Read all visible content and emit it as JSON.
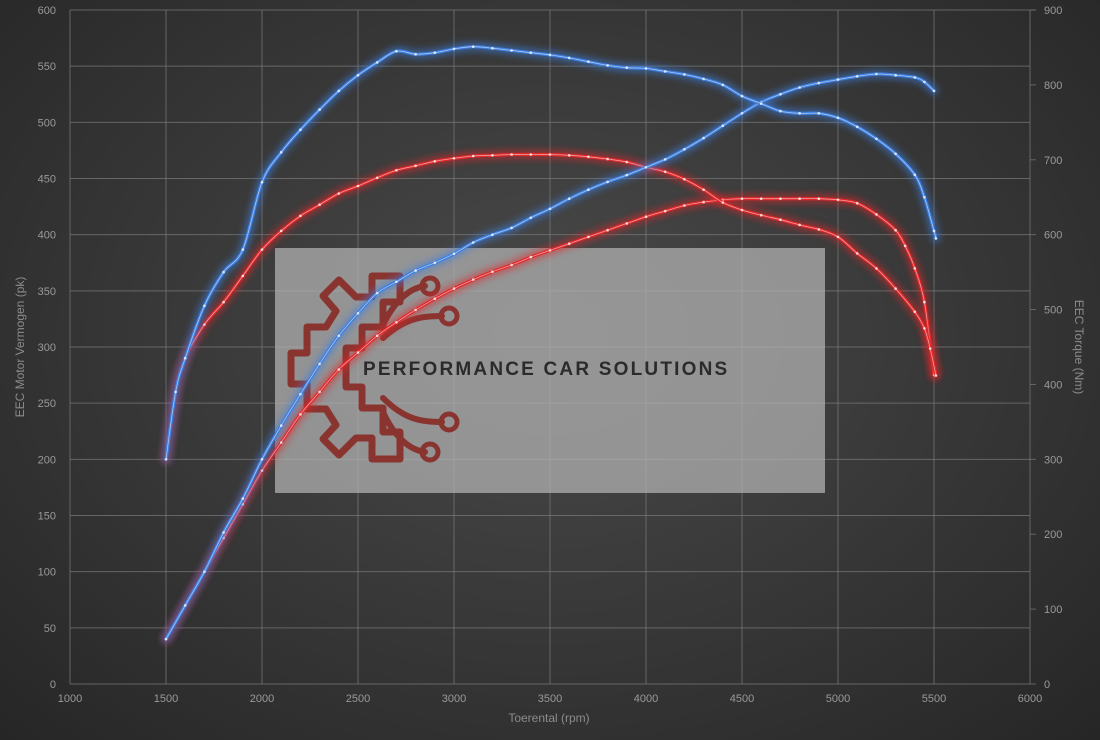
{
  "chart_data": {
    "type": "line",
    "xlabel": "Toerental (rpm)",
    "ylabel_left": "EEC Motor Vermogen (pk)",
    "ylabel_right": "EEC Torque (Nm)",
    "xlim": [
      1000,
      6000
    ],
    "ylim_left": [
      0,
      600
    ],
    "ylim_right": [
      0,
      900
    ],
    "x_ticks": [
      1000,
      1500,
      2000,
      2500,
      3000,
      3500,
      4000,
      4500,
      5000,
      5500,
      6000
    ],
    "y_left_ticks": [
      0,
      50,
      100,
      150,
      200,
      250,
      300,
      350,
      400,
      450,
      500,
      550,
      600
    ],
    "y_right_ticks": [
      0,
      100,
      200,
      300,
      400,
      500,
      600,
      700,
      800,
      900
    ],
    "grid": true,
    "series": [
      {
        "color": "#3d7fe0",
        "axis": "right",
        "x": [
          1500,
          1550,
          1600,
          1700,
          1800,
          1900,
          2000,
          2100,
          2200,
          2300,
          2400,
          2500,
          2600,
          2700,
          2800,
          2900,
          3000,
          3100,
          3200,
          3300,
          3400,
          3500,
          3600,
          3700,
          3800,
          3900,
          4000,
          4100,
          4200,
          4300,
          4400,
          4500,
          4600,
          4700,
          4800,
          4900,
          5000,
          5100,
          5200,
          5300,
          5400,
          5450,
          5500,
          5510
        ],
        "values": [
          300,
          390,
          435,
          505,
          550,
          580,
          670,
          710,
          740,
          767,
          792,
          813,
          830,
          845,
          841,
          843,
          848,
          851,
          849,
          846,
          843,
          840,
          836,
          831,
          826,
          823,
          822,
          818,
          814,
          808,
          800,
          785,
          775,
          765,
          762,
          762,
          756,
          744,
          728,
          708,
          680,
          650,
          605,
          595
        ]
      },
      {
        "color": "#e0282a",
        "axis": "right",
        "x": [
          1500,
          1550,
          1600,
          1700,
          1800,
          1900,
          2000,
          2100,
          2200,
          2300,
          2400,
          2500,
          2600,
          2700,
          2800,
          2900,
          3000,
          3100,
          3200,
          3300,
          3400,
          3500,
          3600,
          3700,
          3800,
          3900,
          4000,
          4100,
          4200,
          4300,
          4400,
          4500,
          4600,
          4700,
          4800,
          4900,
          5000,
          5100,
          5200,
          5300,
          5400,
          5450,
          5480,
          5510
        ],
        "values": [
          300,
          390,
          435,
          480,
          510,
          545,
          580,
          605,
          625,
          640,
          655,
          665,
          676,
          686,
          692,
          698,
          702,
          705,
          706,
          707,
          707,
          707,
          706,
          704,
          701,
          697,
          690,
          684,
          674,
          660,
          643,
          633,
          626,
          620,
          613,
          607,
          597,
          575,
          555,
          528,
          497,
          475,
          448,
          412
        ]
      },
      {
        "color": "#3d7fe0",
        "axis": "left",
        "x": [
          1500,
          1600,
          1700,
          1800,
          1900,
          2000,
          2100,
          2200,
          2300,
          2400,
          2500,
          2600,
          2700,
          2800,
          2900,
          3000,
          3100,
          3200,
          3300,
          3400,
          3500,
          3600,
          3700,
          3800,
          3900,
          4000,
          4100,
          4200,
          4300,
          4400,
          4500,
          4600,
          4700,
          4800,
          4900,
          5000,
          5100,
          5200,
          5300,
          5400,
          5450,
          5500
        ],
        "values": [
          40,
          70,
          100,
          135,
          165,
          200,
          230,
          258,
          285,
          310,
          330,
          348,
          358,
          368,
          375,
          383,
          393,
          400,
          406,
          415,
          423,
          432,
          440,
          447,
          453,
          460,
          467,
          476,
          486,
          497,
          508,
          518,
          525,
          531,
          535,
          538,
          541,
          543,
          542,
          540,
          536,
          528
        ]
      },
      {
        "color": "#e0282a",
        "axis": "left",
        "x": [
          1500,
          1600,
          1700,
          1800,
          1900,
          2000,
          2100,
          2200,
          2300,
          2400,
          2500,
          2600,
          2700,
          2800,
          2900,
          3000,
          3100,
          3200,
          3300,
          3400,
          3500,
          3600,
          3700,
          3800,
          3900,
          4000,
          4100,
          4200,
          4300,
          4400,
          4500,
          4600,
          4700,
          4800,
          4900,
          5000,
          5100,
          5200,
          5300,
          5350,
          5400,
          5450,
          5500
        ],
        "values": [
          40,
          70,
          100,
          130,
          160,
          190,
          215,
          240,
          260,
          280,
          295,
          310,
          322,
          333,
          343,
          352,
          360,
          367,
          373,
          380,
          386,
          392,
          398,
          404,
          410,
          416,
          421,
          426,
          429,
          431,
          432,
          432,
          432,
          432,
          432,
          431,
          428,
          418,
          404,
          390,
          370,
          340,
          275
        ]
      }
    ]
  },
  "watermark": {
    "text": "PERFORMANCE CAR SOLUTIONS",
    "logo_color": "#8a2a26"
  }
}
